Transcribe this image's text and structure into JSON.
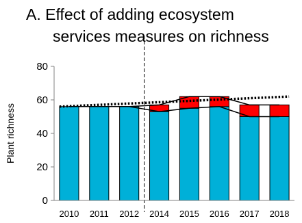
{
  "chart_data": {
    "type": "bar",
    "title_line1": "A.  Effect of adding ecosystem",
    "title_line2": "services measures on richness",
    "xlabel": "",
    "ylabel": "Plant richness",
    "ylim": [
      0,
      80
    ],
    "yticks": [
      0,
      20,
      40,
      60,
      80
    ],
    "categories": [
      "2010",
      "2011",
      "2012",
      "2014",
      "2015",
      "2016",
      "2017",
      "2018"
    ],
    "series": [
      {
        "values": [
          56,
          56,
          56,
          53,
          55,
          56,
          50,
          50
        ],
        "color": "#00B0D8"
      },
      {
        "values": [
          0,
          0,
          0,
          4,
          7,
          6,
          7,
          7
        ],
        "color": "#FF0000"
      }
    ],
    "baseline_line": [
      56,
      56,
      56,
      53,
      55,
      56,
      50,
      50
    ],
    "total_line": [
      56,
      56,
      56,
      57,
      62,
      62,
      57,
      57
    ],
    "trend_line": {
      "start": 56,
      "end": 62,
      "style": "dotted"
    },
    "divider_after_category": "2012",
    "grid": false,
    "legend": "none"
  }
}
